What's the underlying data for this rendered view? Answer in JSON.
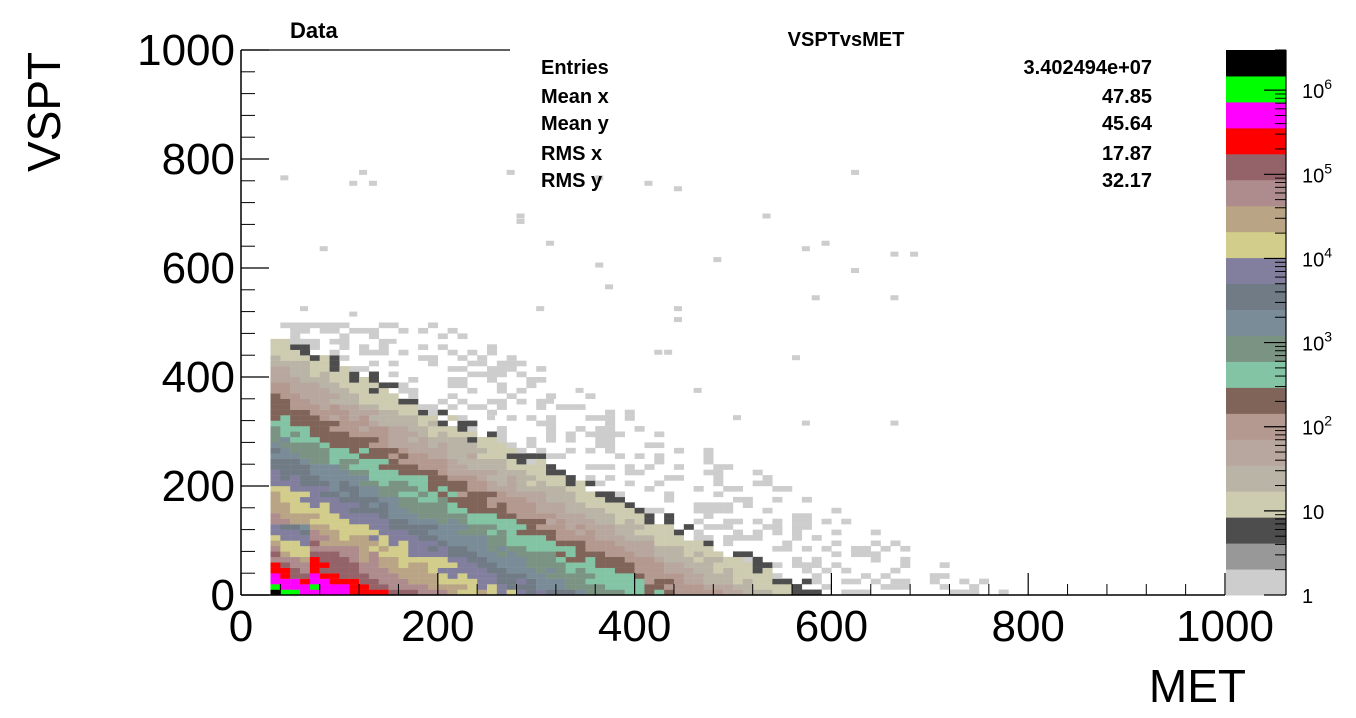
{
  "header": {
    "top_left_label": "Data",
    "title": "VSPTvsMET"
  },
  "stats_box": {
    "rows": [
      {
        "label": "Entries",
        "value": "3.402494e+07"
      },
      {
        "label": "Mean x",
        "value": "47.85"
      },
      {
        "label": "Mean y",
        "value": "45.64"
      },
      {
        "label": "RMS x",
        "value": "17.87"
      },
      {
        "label": "RMS y",
        "value": "32.17"
      }
    ]
  },
  "chart_data": {
    "type": "heatmap",
    "title": "VSPTvsMET",
    "xlabel": "MET",
    "ylabel": "VSPT",
    "xlim": [
      0,
      1000
    ],
    "ylim": [
      0,
      1000
    ],
    "x_ticks": [
      0,
      200,
      400,
      600,
      800,
      1000
    ],
    "y_ticks": [
      0,
      200,
      400,
      600,
      800,
      1000
    ],
    "x_tick_labels": [
      "0",
      "200",
      "400",
      "600",
      "800",
      "1000"
    ],
    "y_tick_labels": [
      "0",
      "200",
      "400",
      "600",
      "800",
      "1000"
    ],
    "z_scale": "log",
    "zlim": [
      1,
      3000000
    ],
    "colorbar_ticks": [
      {
        "value": 1,
        "label": "1"
      },
      {
        "value": 10,
        "label": "10"
      },
      {
        "value": 100,
        "label": "10^2"
      },
      {
        "value": 1000,
        "label": "10^3"
      },
      {
        "value": 10000,
        "label": "10^4"
      },
      {
        "value": 100000,
        "label": "10^5"
      },
      {
        "value": 1000000,
        "label": "10^6"
      }
    ],
    "palette": [
      "#cdcdcd",
      "#989898",
      "#4d4d4d",
      "#cdcbb0",
      "#b9b4a6",
      "#b8a79e",
      "#b3998f",
      "#806459",
      "#83c4a4",
      "#7b9383",
      "#7a8c98",
      "#707b85",
      "#827f9e",
      "#d2cd8a",
      "#b9a485",
      "#ae8c8e",
      "#94636a",
      "#ff0000",
      "#ff00ff",
      "#00ff00",
      "#000000"
    ],
    "hotspot": {
      "mean_x": 47.85,
      "mean_y": 45.64,
      "rms_x": 17.87,
      "rms_y": 32.17,
      "entries": 34024940
    }
  }
}
